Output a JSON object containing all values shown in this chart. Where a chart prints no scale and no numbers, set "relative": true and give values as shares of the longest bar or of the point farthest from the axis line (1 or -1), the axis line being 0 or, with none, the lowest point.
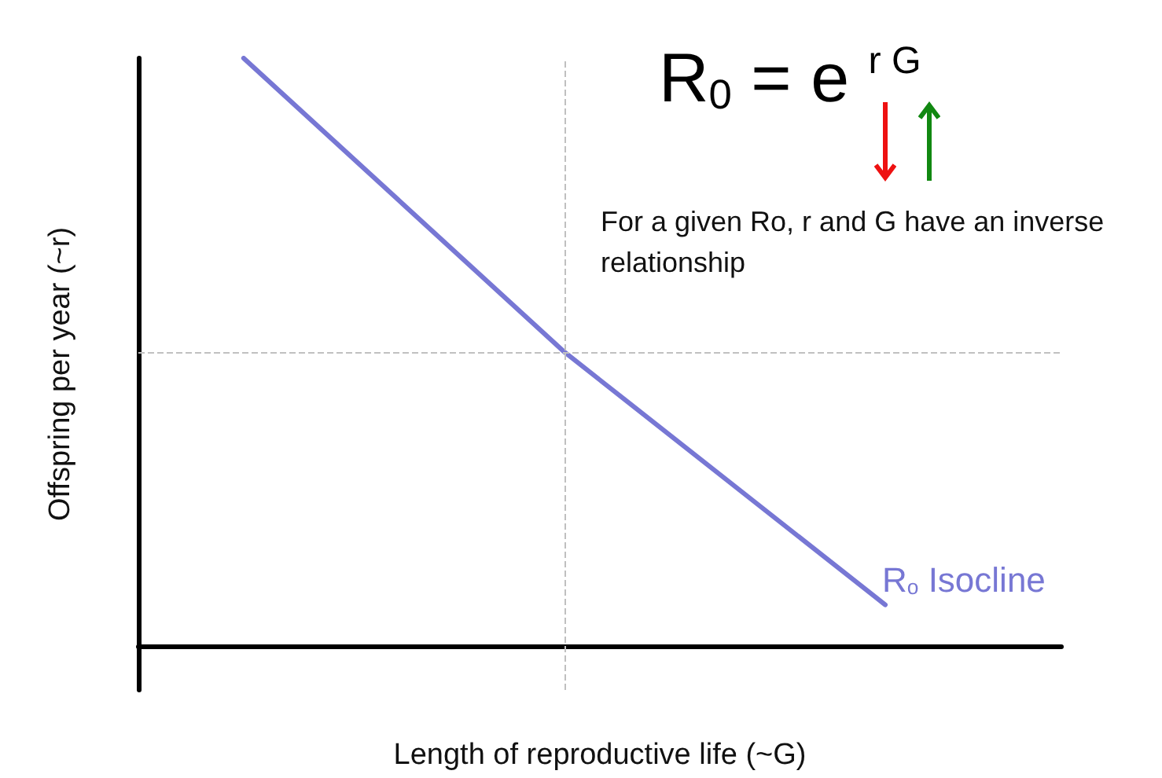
{
  "chart_data": {
    "type": "line",
    "relative": true,
    "title": "R$_{0}$ = e $^{r G}$",
    "xlabel": "Length of reproductive life (~G)",
    "ylabel": "Offspring per year (~r)",
    "annotations": [
      "For a given Ro, r and G have an inverse relationship"
    ],
    "categories": [
      null,
      null,
      null
    ],
    "series": [
      {
        "name": "R$_{o}$ Isocline",
        "color": "#7777d4",
        "values": [
          1,
          0.5,
          0.07
        ]
      }
    ],
    "ref_lines": [
      {
        "axis": "y",
        "value": 0.5,
        "color": "#c0c0c0",
        "line_style": "dashed"
      }
    ],
    "marker": "none",
    "line_style": "solid",
    "grid": false,
    "legend": false
  }
}
